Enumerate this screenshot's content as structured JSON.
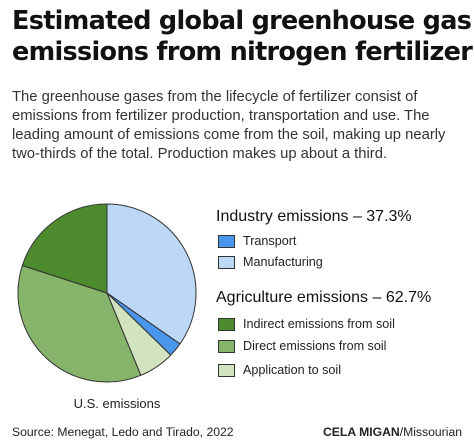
{
  "header": {
    "title_line1": "Estimated global greenhouse gas",
    "title_line2": "emissions from nitrogen fertilizer",
    "subtitle": "The greenhouse gases from the lifecycle of fertilizer consist of emissions from fertilizer production, transportation and use. The leading amount of emissions come from the soil, making up nearly two-thirds of the total. Production makes up about a third."
  },
  "chart_data": {
    "type": "pie",
    "caption": "U.S. emissions",
    "groups": [
      {
        "label": "Industry emissions – 37.3%",
        "items": [
          {
            "label": "Transport",
            "color": "#4a96ec"
          },
          {
            "label": "Manufacturing",
            "color": "#bcd8f6"
          }
        ]
      },
      {
        "label": "Agriculture emissions – 62.7%",
        "items": [
          {
            "label": "Indirect emissions from soil",
            "color": "#4e8b2f"
          },
          {
            "label": "Direct emissions from soil",
            "color": "#86b46a"
          },
          {
            "label": "Application to soil",
            "color": "#d2e4bf"
          }
        ]
      }
    ],
    "slices": [
      {
        "label": "Manufacturing",
        "value": 34.7,
        "color": "#bcd8f6"
      },
      {
        "label": "Transport",
        "value": 2.6,
        "color": "#4a96ec"
      },
      {
        "label": "Application to soil",
        "value": 6.5,
        "color": "#d2e4bf"
      },
      {
        "label": "Direct emissions from soil",
        "value": 36.2,
        "color": "#86b46a"
      },
      {
        "label": "Indirect emissions from soil",
        "value": 20.0,
        "color": "#4e8b2f"
      }
    ]
  },
  "footer": {
    "source": "Source: Menegat, Ledo and Tirado, 2022",
    "credit_name": "CELA MIGAN",
    "credit_org": "/Missourian"
  }
}
